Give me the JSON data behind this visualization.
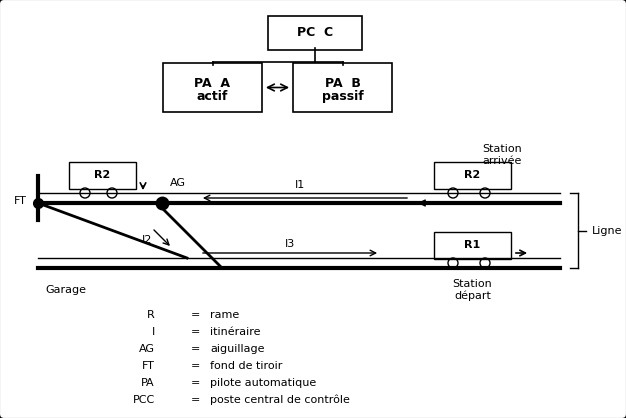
{
  "fig_bg": "#ffffff",
  "legend_items": [
    [
      "R",
      "rame"
    ],
    [
      "I",
      "itinéraire"
    ],
    [
      "AG",
      "aiguillage"
    ],
    [
      "FT",
      "fond de tiroir"
    ],
    [
      "PA",
      "pilote automatique"
    ],
    [
      "PCC",
      "poste central de contrôle"
    ]
  ]
}
